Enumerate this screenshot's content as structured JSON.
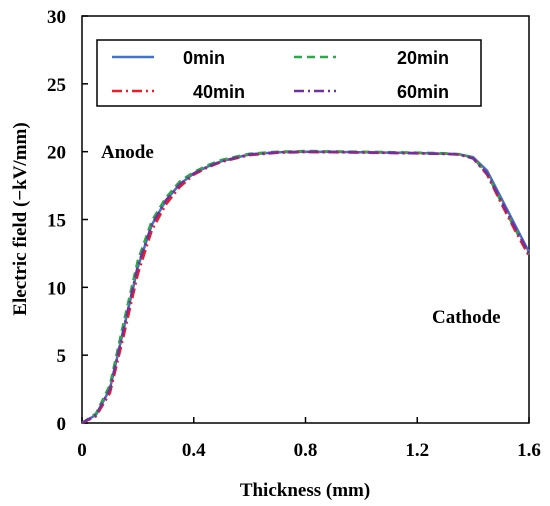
{
  "chart_data": {
    "type": "line",
    "xlabel": "Thickness  (mm)",
    "ylabel": "Electric field  (−kV/mm)",
    "xlim": [
      0,
      1.6
    ],
    "ylim": [
      0,
      30
    ],
    "x_ticks": [
      "0",
      "0.4",
      "0.8",
      "1.2",
      "1.6"
    ],
    "y_ticks": [
      "0",
      "5",
      "10",
      "15",
      "20",
      "25",
      "30"
    ],
    "grid": false,
    "legend_position": "top",
    "annotations": [
      "Anode",
      "Cathode"
    ],
    "x": [
      0,
      0.05,
      0.1,
      0.15,
      0.2,
      0.25,
      0.3,
      0.35,
      0.4,
      0.45,
      0.5,
      0.6,
      0.7,
      0.8,
      0.9,
      1.0,
      1.1,
      1.2,
      1.3,
      1.35,
      1.4,
      1.45,
      1.5,
      1.55,
      1.6
    ],
    "series": [
      {
        "name": "0min",
        "color": "#4472c4",
        "dash": "solid",
        "values": [
          0,
          0.6,
          2.5,
          7.0,
          11.5,
          14.6,
          16.4,
          17.6,
          18.4,
          18.9,
          19.3,
          19.8,
          19.95,
          20.0,
          19.98,
          19.96,
          19.93,
          19.9,
          19.85,
          19.8,
          19.6,
          18.6,
          16.6,
          14.6,
          12.6
        ]
      },
      {
        "name": "20min",
        "color": "#2ea84a",
        "dash": "dashed",
        "values": [
          0,
          0.7,
          2.8,
          7.5,
          12.0,
          14.9,
          16.6,
          17.8,
          18.5,
          19.0,
          19.4,
          19.85,
          20.0,
          20.05,
          20.02,
          20.0,
          19.97,
          19.93,
          19.88,
          19.82,
          19.55,
          18.4,
          16.3,
          14.3,
          12.4
        ]
      },
      {
        "name": "40min",
        "color": "#ee1c24",
        "dash": "dashdot",
        "values": [
          0,
          0.5,
          2.2,
          6.5,
          11.0,
          14.2,
          16.1,
          17.4,
          18.3,
          18.85,
          19.25,
          19.75,
          19.92,
          19.97,
          19.95,
          19.93,
          19.9,
          19.87,
          19.83,
          19.78,
          19.5,
          18.3,
          16.2,
          14.2,
          12.3
        ]
      },
      {
        "name": "60min",
        "color": "#7030a0",
        "dash": "dashdot",
        "values": [
          0,
          0.6,
          2.5,
          7.0,
          11.6,
          14.6,
          16.4,
          17.6,
          18.4,
          18.9,
          19.3,
          19.8,
          19.95,
          20.0,
          19.98,
          19.95,
          19.92,
          19.88,
          19.84,
          19.79,
          19.5,
          18.4,
          16.4,
          14.4,
          12.5
        ]
      }
    ]
  }
}
